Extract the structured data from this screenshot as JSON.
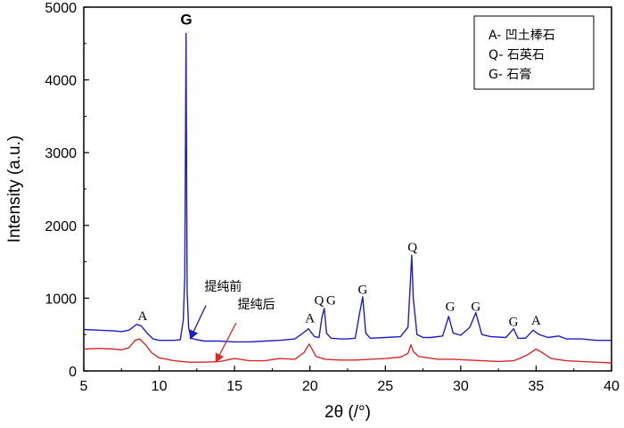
{
  "chart_data": {
    "type": "line",
    "xlabel": "2θ (/°)",
    "ylabel": "Intensity (a.u.)",
    "xlim": [
      5,
      40
    ],
    "ylim": [
      0,
      5000
    ],
    "xticks": [
      "5",
      "10",
      "15",
      "20",
      "25",
      "30",
      "35",
      "40"
    ],
    "yticks": [
      "0",
      "1000",
      "2000",
      "3000",
      "4000",
      "5000"
    ],
    "grid": false,
    "legend_position": "top-right",
    "legend": [
      "A- 凹土棒石",
      "Q- 石英石",
      "G- 石膏"
    ],
    "series": [
      {
        "name": "提纯前",
        "color": "#1f1fbf",
        "x": [
          5,
          6,
          7,
          7.5,
          8,
          8.5,
          8.8,
          9.2,
          9.6,
          10,
          10.5,
          11,
          11.4,
          11.6,
          11.7,
          11.78,
          11.85,
          11.95,
          12.1,
          12.5,
          13,
          14,
          15,
          16,
          17,
          18,
          19,
          19.6,
          19.9,
          20.3,
          20.6,
          20.8,
          20.95,
          21.1,
          21.4,
          22,
          22.5,
          23,
          23.3,
          23.5,
          23.7,
          24,
          25,
          26,
          26.5,
          26.75,
          26.85,
          27.1,
          27.5,
          28,
          28.8,
          29.2,
          29.5,
          30,
          30.6,
          31,
          31.4,
          32,
          33,
          33.5,
          33.8,
          34.3,
          34.8,
          35.2,
          35.8,
          36.5,
          37,
          38,
          39,
          40
        ],
        "values": [
          570,
          560,
          550,
          540,
          560,
          640,
          620,
          520,
          440,
          420,
          420,
          420,
          430,
          700,
          1300,
          4640,
          1100,
          600,
          450,
          430,
          410,
          410,
          400,
          400,
          410,
          420,
          440,
          530,
          580,
          470,
          460,
          740,
          860,
          520,
          450,
          440,
          440,
          450,
          800,
          1020,
          520,
          450,
          460,
          470,
          600,
          1590,
          1000,
          500,
          460,
          460,
          480,
          750,
          520,
          490,
          600,
          800,
          500,
          470,
          460,
          580,
          450,
          450,
          560,
          500,
          460,
          480,
          440,
          440,
          420,
          420
        ]
      },
      {
        "name": "提纯后",
        "color": "#d42a2a",
        "x": [
          5,
          6,
          7,
          7.5,
          8,
          8.4,
          8.7,
          9.1,
          9.5,
          10,
          10.5,
          11,
          12,
          13,
          14,
          15,
          16,
          17,
          18,
          19,
          19.6,
          19.95,
          20.4,
          21,
          22,
          23,
          24,
          25,
          26,
          26.5,
          26.7,
          26.85,
          27.2,
          27.8,
          28.5,
          29.5,
          30.5,
          31.5,
          32.5,
          33.5,
          34,
          34.5,
          35,
          35.5,
          36,
          37,
          38,
          39,
          40
        ],
        "values": [
          300,
          310,
          300,
          290,
          320,
          420,
          440,
          360,
          250,
          180,
          160,
          140,
          120,
          120,
          130,
          170,
          140,
          140,
          170,
          160,
          250,
          370,
          200,
          160,
          150,
          150,
          160,
          170,
          190,
          240,
          360,
          270,
          200,
          180,
          160,
          160,
          150,
          140,
          130,
          140,
          180,
          230,
          300,
          240,
          170,
          140,
          130,
          120,
          110
        ]
      }
    ],
    "peak_labels": [
      {
        "text": "G",
        "x": 11.8,
        "y": 4760,
        "bold": true
      },
      {
        "text": "A",
        "x": 8.9,
        "y": 700
      },
      {
        "text": "A",
        "x": 20.0,
        "y": 670
      },
      {
        "text": "Q",
        "x": 20.6,
        "y": 910
      },
      {
        "text": "G",
        "x": 21.4,
        "y": 910
      },
      {
        "text": "G",
        "x": 23.5,
        "y": 1060
      },
      {
        "text": "Q",
        "x": 26.8,
        "y": 1640
      },
      {
        "text": "G",
        "x": 29.3,
        "y": 830
      },
      {
        "text": "G",
        "x": 31.0,
        "y": 830
      },
      {
        "text": "G",
        "x": 33.5,
        "y": 620
      },
      {
        "text": "A",
        "x": 35.0,
        "y": 640
      }
    ],
    "annotations": [
      {
        "text": "提纯前",
        "text_x": 13.0,
        "text_y": 1100,
        "arrow_from": [
          13.1,
          900
        ],
        "arrow_to": [
          12.1,
          460
        ]
      },
      {
        "text": "提纯后",
        "text_x": 15.2,
        "text_y": 860,
        "arrow_from": [
          15.1,
          660
        ],
        "arrow_to": [
          13.8,
          140
        ]
      }
    ]
  }
}
